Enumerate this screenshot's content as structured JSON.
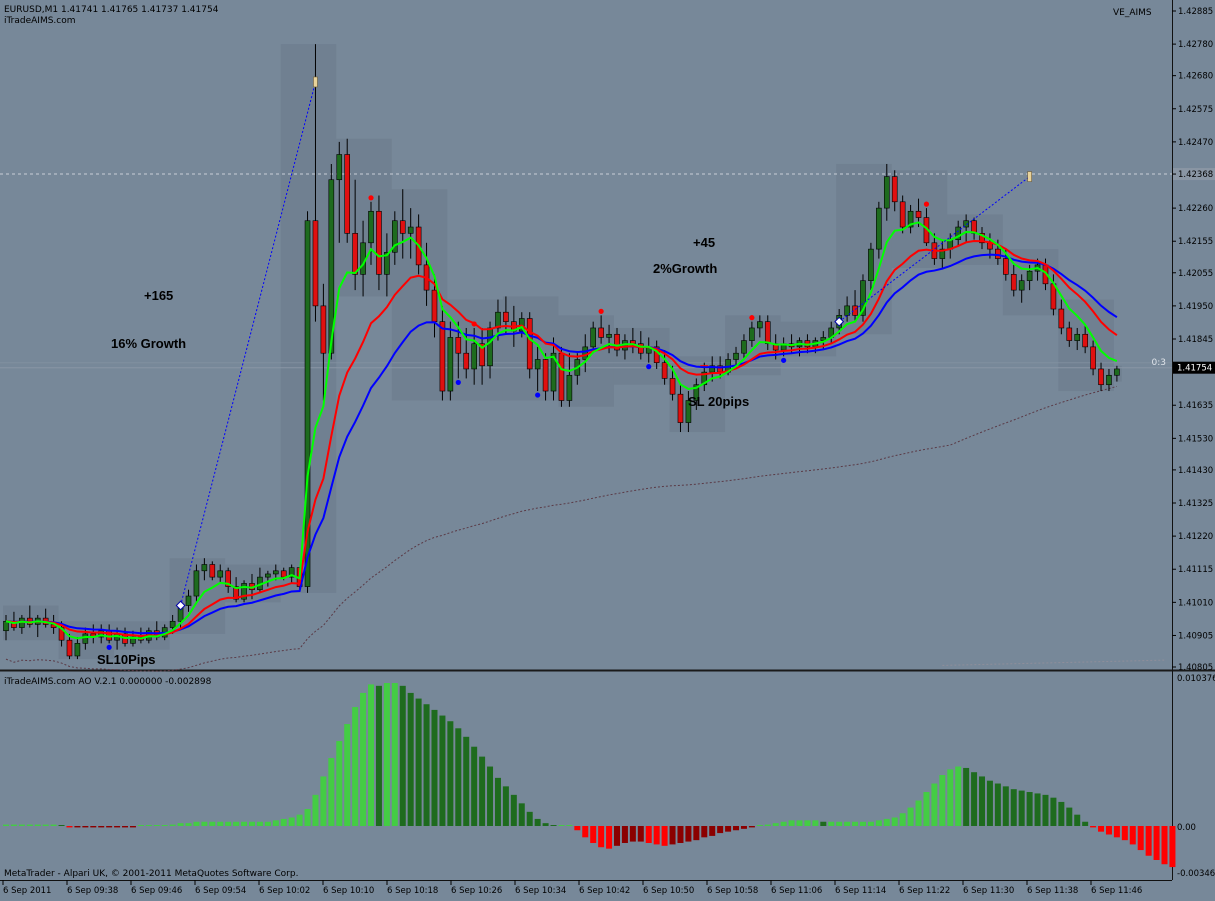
{
  "window": {
    "symbol_info": "EURUSD,M1  1.41741 1.41765 1.41737 1.41754",
    "site": "iTradeAIMS.com",
    "indicator_name": "VE_AIMS"
  },
  "colors": {
    "background": "#778899",
    "bull_candle": "#1e6b1e",
    "bear_candle": "#e01010",
    "ema_green": "#00ff00",
    "ema_red": "#ff0000",
    "ema_blue": "#0000ff",
    "zone_box": "#6b7a8b",
    "ao_up_light": "#44cc44",
    "ao_up_dark": "#1e6b1e",
    "ao_down_light": "#ff0000",
    "ao_down_dark": "#8b0000"
  },
  "price_axis": {
    "labels": [
      "1.42885",
      "1.42780",
      "1.42680",
      "1.42575",
      "1.42470",
      "1.42368",
      "1.42260",
      "1.42155",
      "1.42055",
      "1.41950",
      "1.41845",
      "1.41754",
      "1.41635",
      "1.41530",
      "1.41430",
      "1.41325",
      "1.41220",
      "1.41115",
      "1.41010",
      "1.40905",
      "1.40805"
    ],
    "highlight_level": "1.42368",
    "current_price": "1.41754"
  },
  "time_axis": {
    "labels": [
      "6 Sep 2011",
      "6 Sep 09:38",
      "6 Sep 09:46",
      "6 Sep 09:54",
      "6 Sep 10:02",
      "6 Sep 10:10",
      "6 Sep 10:18",
      "6 Sep 10:26",
      "6 Sep 10:34",
      "6 Sep 10:42",
      "6 Sep 10:50",
      "6 Sep 10:58",
      "6 Sep 11:06",
      "6 Sep 11:14",
      "6 Sep 11:22",
      "6 Sep 11:30",
      "6 Sep 11:38",
      "6 Sep 11:46"
    ]
  },
  "annotations": {
    "trade1_pips": "+165",
    "trade1_growth": "16% Growth",
    "trade1_sl": "SL10Pips",
    "trade2_pips": "+45",
    "trade2_growth": "2%Growth",
    "trade2_sl": "SL 20pips",
    "countdown_stub": "0:3"
  },
  "ao_panel": {
    "title": "iTradeAIMS.com AO V.2.1 0.000000 -0.002898",
    "axis_labels": [
      "0.010376",
      "0.00",
      "-0.00346"
    ],
    "footer": "MetaTrader - Alpari UK, © 2001-2011 MetaQuotes Software Corp."
  },
  "chart_data": {
    "type": "candlestick",
    "symbol": "EURUSD",
    "timeframe": "M1",
    "start_time": "09:30",
    "ylim": [
      1.40805,
      1.42885
    ],
    "ohlc": [
      [
        1.4092,
        1.4097,
        1.4089,
        1.4095
      ],
      [
        1.4095,
        1.4098,
        1.4092,
        1.4093
      ],
      [
        1.4093,
        1.4097,
        1.4091,
        1.4096
      ],
      [
        1.4096,
        1.41,
        1.4093,
        1.4094
      ],
      [
        1.4094,
        1.4097,
        1.409,
        1.4096
      ],
      [
        1.4096,
        1.4099,
        1.4093,
        1.4094
      ],
      [
        1.4094,
        1.4097,
        1.4091,
        1.4093
      ],
      [
        1.4093,
        1.4095,
        1.4087,
        1.4089
      ],
      [
        1.4089,
        1.4091,
        1.4083,
        1.4084
      ],
      [
        1.4084,
        1.409,
        1.4083,
        1.4088
      ],
      [
        1.4088,
        1.4093,
        1.4086,
        1.4091
      ],
      [
        1.4091,
        1.4094,
        1.4088,
        1.409
      ],
      [
        1.409,
        1.4094,
        1.4088,
        1.4092
      ],
      [
        1.4092,
        1.4094,
        1.4088,
        1.4089
      ],
      [
        1.4089,
        1.4093,
        1.4086,
        1.4091
      ],
      [
        1.4091,
        1.4093,
        1.4087,
        1.4088
      ],
      [
        1.4088,
        1.4092,
        1.4087,
        1.409
      ],
      [
        1.409,
        1.4093,
        1.4088,
        1.4089
      ],
      [
        1.4089,
        1.4093,
        1.4088,
        1.4092
      ],
      [
        1.4092,
        1.4095,
        1.4089,
        1.409
      ],
      [
        1.409,
        1.4094,
        1.4089,
        1.4093
      ],
      [
        1.4093,
        1.4097,
        1.4091,
        1.4095
      ],
      [
        1.4095,
        1.4101,
        1.4093,
        1.41
      ],
      [
        1.41,
        1.4105,
        1.4098,
        1.4103
      ],
      [
        1.4103,
        1.4113,
        1.4101,
        1.4111
      ],
      [
        1.4111,
        1.4115,
        1.4108,
        1.4113
      ],
      [
        1.4113,
        1.4114,
        1.4108,
        1.4109
      ],
      [
        1.4109,
        1.4113,
        1.4107,
        1.4111
      ],
      [
        1.4111,
        1.4112,
        1.4104,
        1.4106
      ],
      [
        1.4106,
        1.4109,
        1.4101,
        1.4102
      ],
      [
        1.4102,
        1.4108,
        1.4101,
        1.4107
      ],
      [
        1.4107,
        1.411,
        1.4102,
        1.4105
      ],
      [
        1.4105,
        1.4112,
        1.4104,
        1.4109
      ],
      [
        1.4109,
        1.4111,
        1.4106,
        1.411
      ],
      [
        1.411,
        1.4113,
        1.4108,
        1.4111
      ],
      [
        1.4111,
        1.4112,
        1.4108,
        1.4109
      ],
      [
        1.4109,
        1.4113,
        1.4107,
        1.4112
      ],
      [
        1.4112,
        1.4112,
        1.4105,
        1.4106
      ],
      [
        1.4106,
        1.4225,
        1.4104,
        1.4222
      ],
      [
        1.4222,
        1.4278,
        1.419,
        1.4195
      ],
      [
        1.4195,
        1.4202,
        1.4165,
        1.418
      ],
      [
        1.418,
        1.424,
        1.4178,
        1.4235
      ],
      [
        1.4235,
        1.4247,
        1.4215,
        1.4243
      ],
      [
        1.4243,
        1.4248,
        1.4215,
        1.4218
      ],
      [
        1.4218,
        1.4235,
        1.42,
        1.4205
      ],
      [
        1.4205,
        1.4222,
        1.4198,
        1.4215
      ],
      [
        1.4215,
        1.4228,
        1.4208,
        1.4225
      ],
      [
        1.4225,
        1.423,
        1.42,
        1.4205
      ],
      [
        1.4205,
        1.4218,
        1.4198,
        1.4212
      ],
      [
        1.4212,
        1.4225,
        1.4208,
        1.4222
      ],
      [
        1.4222,
        1.4232,
        1.421,
        1.4218
      ],
      [
        1.4218,
        1.4226,
        1.421,
        1.422
      ],
      [
        1.422,
        1.4224,
        1.4205,
        1.4208
      ],
      [
        1.4208,
        1.4215,
        1.4195,
        1.42
      ],
      [
        1.42,
        1.4205,
        1.4185,
        1.419
      ],
      [
        1.419,
        1.4195,
        1.4165,
        1.4168
      ],
      [
        1.4168,
        1.419,
        1.4165,
        1.4185
      ],
      [
        1.4185,
        1.419,
        1.4172,
        1.418
      ],
      [
        1.418,
        1.4188,
        1.4172,
        1.4175
      ],
      [
        1.4175,
        1.4188,
        1.417,
        1.4183
      ],
      [
        1.4183,
        1.4188,
        1.417,
        1.4176
      ],
      [
        1.4176,
        1.419,
        1.4172,
        1.4188
      ],
      [
        1.4188,
        1.4197,
        1.4184,
        1.4193
      ],
      [
        1.4193,
        1.4198,
        1.4186,
        1.419
      ],
      [
        1.419,
        1.4195,
        1.4182,
        1.4187
      ],
      [
        1.4187,
        1.4193,
        1.4185,
        1.4191
      ],
      [
        1.4191,
        1.4193,
        1.4172,
        1.4175
      ],
      [
        1.4175,
        1.4182,
        1.4168,
        1.4178
      ],
      [
        1.4178,
        1.418,
        1.4165,
        1.4168
      ],
      [
        1.4168,
        1.4185,
        1.4165,
        1.418
      ],
      [
        1.418,
        1.4182,
        1.4163,
        1.4165
      ],
      [
        1.4165,
        1.418,
        1.4163,
        1.4173
      ],
      [
        1.4173,
        1.418,
        1.417,
        1.4178
      ],
      [
        1.4178,
        1.4186,
        1.4174,
        1.4182
      ],
      [
        1.4182,
        1.419,
        1.418,
        1.4188
      ],
      [
        1.4188,
        1.4192,
        1.4183,
        1.4185
      ],
      [
        1.4185,
        1.4189,
        1.418,
        1.4186
      ],
      [
        1.4186,
        1.4188,
        1.4179,
        1.4181
      ],
      [
        1.4181,
        1.4186,
        1.4178,
        1.4184
      ],
      [
        1.4184,
        1.4188,
        1.418,
        1.4183
      ],
      [
        1.4183,
        1.4187,
        1.4178,
        1.418
      ],
      [
        1.418,
        1.4185,
        1.4177,
        1.4182
      ],
      [
        1.4182,
        1.4184,
        1.4175,
        1.4177
      ],
      [
        1.4177,
        1.4181,
        1.417,
        1.4172
      ],
      [
        1.4172,
        1.4176,
        1.4165,
        1.4167
      ],
      [
        1.4167,
        1.417,
        1.4155,
        1.4158
      ],
      [
        1.4158,
        1.4168,
        1.4155,
        1.4165
      ],
      [
        1.4165,
        1.4172,
        1.4162,
        1.417
      ],
      [
        1.417,
        1.4177,
        1.4168,
        1.4174
      ],
      [
        1.4174,
        1.4179,
        1.4171,
        1.4176
      ],
      [
        1.4176,
        1.4179,
        1.4172,
        1.4174
      ],
      [
        1.4174,
        1.418,
        1.4173,
        1.4178
      ],
      [
        1.4178,
        1.4182,
        1.4175,
        1.418
      ],
      [
        1.418,
        1.4186,
        1.4178,
        1.4184
      ],
      [
        1.4184,
        1.419,
        1.4182,
        1.4188
      ],
      [
        1.4188,
        1.4192,
        1.4185,
        1.419
      ],
      [
        1.419,
        1.4192,
        1.4181,
        1.4183
      ],
      [
        1.4183,
        1.4186,
        1.4178,
        1.4181
      ],
      [
        1.4181,
        1.4185,
        1.4179,
        1.4183
      ],
      [
        1.4183,
        1.4186,
        1.418,
        1.4182
      ],
      [
        1.4182,
        1.4185,
        1.4179,
        1.4184
      ],
      [
        1.4184,
        1.4186,
        1.418,
        1.4182
      ],
      [
        1.4182,
        1.4185,
        1.418,
        1.4184
      ],
      [
        1.4184,
        1.4187,
        1.4181,
        1.4185
      ],
      [
        1.4185,
        1.419,
        1.4183,
        1.4188
      ],
      [
        1.4188,
        1.4194,
        1.4186,
        1.4192
      ],
      [
        1.4192,
        1.4198,
        1.419,
        1.4195
      ],
      [
        1.4195,
        1.42,
        1.419,
        1.4192
      ],
      [
        1.4192,
        1.4205,
        1.419,
        1.4203
      ],
      [
        1.4203,
        1.4215,
        1.42,
        1.4213
      ],
      [
        1.4213,
        1.4228,
        1.421,
        1.4226
      ],
      [
        1.4226,
        1.424,
        1.4222,
        1.4236
      ],
      [
        1.4236,
        1.4238,
        1.4225,
        1.4228
      ],
      [
        1.4228,
        1.423,
        1.4218,
        1.422
      ],
      [
        1.422,
        1.4227,
        1.4218,
        1.4225
      ],
      [
        1.4225,
        1.4229,
        1.422,
        1.4223
      ],
      [
        1.4223,
        1.4226,
        1.4214,
        1.4215
      ],
      [
        1.4215,
        1.4218,
        1.4208,
        1.421
      ],
      [
        1.421,
        1.4216,
        1.4207,
        1.4213
      ],
      [
        1.4213,
        1.4218,
        1.421,
        1.4216
      ],
      [
        1.4216,
        1.4222,
        1.4214,
        1.422
      ],
      [
        1.422,
        1.4224,
        1.4215,
        1.4222
      ],
      [
        1.4222,
        1.4223,
        1.4216,
        1.4218
      ],
      [
        1.4218,
        1.422,
        1.4213,
        1.4215
      ],
      [
        1.4215,
        1.4218,
        1.421,
        1.4213
      ],
      [
        1.4213,
        1.4216,
        1.4208,
        1.421
      ],
      [
        1.421,
        1.4213,
        1.4203,
        1.4205
      ],
      [
        1.4205,
        1.4208,
        1.4198,
        1.42
      ],
      [
        1.42,
        1.4205,
        1.4196,
        1.4203
      ],
      [
        1.4203,
        1.4208,
        1.42,
        1.4206
      ],
      [
        1.4206,
        1.421,
        1.4203,
        1.4208
      ],
      [
        1.4208,
        1.421,
        1.42,
        1.4202
      ],
      [
        1.4202,
        1.4205,
        1.4192,
        1.4194
      ],
      [
        1.4194,
        1.4197,
        1.4186,
        1.4188
      ],
      [
        1.4188,
        1.419,
        1.4182,
        1.4184
      ],
      [
        1.4184,
        1.4188,
        1.4181,
        1.4186
      ],
      [
        1.4186,
        1.4189,
        1.418,
        1.4182
      ],
      [
        1.4182,
        1.4184,
        1.4173,
        1.4175
      ],
      [
        1.4175,
        1.4177,
        1.4168,
        1.417
      ],
      [
        1.417,
        1.4175,
        1.4168,
        1.4173
      ],
      [
        1.4173,
        1.4176,
        1.4171,
        1.4175
      ]
    ],
    "trade_entries": [
      {
        "bar": 22,
        "entry": 1.41,
        "exit_bar": 39,
        "exit": 1.4266
      },
      {
        "bar": 105,
        "entry": 1.419,
        "exit_bar": 129,
        "exit": 1.4236
      }
    ],
    "ao_values": [
      0.0001,
      0.0001,
      0.0001,
      0.0001,
      0.0001,
      0.0001,
      0.0001,
      0.0,
      -0.0001,
      -0.0001,
      -0.0001,
      -0.0001,
      -0.0001,
      -0.0001,
      -0.0001,
      -0.0001,
      -0.0001,
      0.0,
      0.0,
      0.0,
      0.0,
      0.0001,
      0.0002,
      0.0002,
      0.0003,
      0.0003,
      0.0003,
      0.0003,
      0.0003,
      0.0003,
      0.0003,
      0.0003,
      0.0003,
      0.0003,
      0.0004,
      0.0005,
      0.0006,
      0.0008,
      0.0012,
      0.0022,
      0.0035,
      0.0048,
      0.006,
      0.0072,
      0.0084,
      0.0094,
      0.01,
      0.0099,
      0.0101,
      0.0101,
      0.0099,
      0.0094,
      0.009,
      0.0086,
      0.0082,
      0.0078,
      0.0074,
      0.0069,
      0.0063,
      0.0056,
      0.0049,
      0.0042,
      0.0034,
      0.0028,
      0.0022,
      0.0016,
      0.001,
      0.0005,
      0.0002,
      0.0,
      0.0,
      0.0,
      -0.0003,
      -0.0008,
      -0.0012,
      -0.0015,
      -0.0016,
      -0.0014,
      -0.0012,
      -0.0011,
      -0.0011,
      -0.0012,
      -0.0013,
      -0.0014,
      -0.0013,
      -0.0012,
      -0.0011,
      -0.001,
      -0.0008,
      -0.0007,
      -0.0005,
      -0.0004,
      -0.0003,
      -0.0002,
      -0.0001,
      0.0,
      0.0001,
      0.0002,
      0.0003,
      0.0004,
      0.0004,
      0.0004,
      0.0004,
      0.0003,
      0.0003,
      0.0003,
      0.0003,
      0.0003,
      0.0003,
      0.0003,
      0.0004,
      0.0005,
      0.0006,
      0.0009,
      0.0013,
      0.0018,
      0.0024,
      0.003,
      0.0036,
      0.004,
      0.0042,
      0.0041,
      0.0038,
      0.0035,
      0.0032,
      0.003,
      0.0028,
      0.0026,
      0.0025,
      0.0024,
      0.0023,
      0.0022,
      0.002,
      0.0017,
      0.0013,
      0.0008,
      0.0003,
      -0.0001,
      -0.0004,
      -0.0006,
      -0.0008,
      -0.001,
      -0.0013,
      -0.0017,
      -0.0021,
      -0.0024,
      -0.0027,
      -0.0029
    ]
  }
}
